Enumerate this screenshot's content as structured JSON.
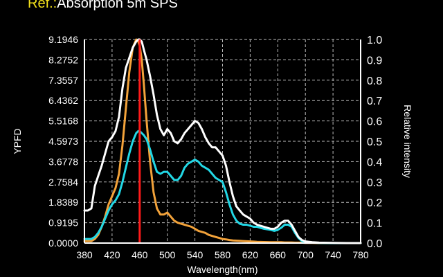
{
  "header": {
    "ref_label": "Ref.:",
    "title": "Absorption 5m SPS"
  },
  "chart_data": {
    "type": "line",
    "xlabel": "Wavelength(nm)",
    "ylabel_left": "YPFD",
    "ylabel_right": "Relative intensity",
    "xlim": [
      380,
      780
    ],
    "ylim_left": [
      0,
      9.1946
    ],
    "ylim_right": [
      0,
      1.0
    ],
    "x_ticks": [
      "380",
      "420",
      "460",
      "500",
      "540",
      "580",
      "620",
      "660",
      "700",
      "740",
      "780"
    ],
    "y_left_ticks": [
      "0.0000",
      "0.9195",
      "1.8389",
      "2.7584",
      "3.6778",
      "4.5973",
      "5.5168",
      "6.4362",
      "7.3557",
      "8.2752",
      "9.1946"
    ],
    "y_right_ticks": [
      "0.0",
      "0.1",
      "0.2",
      "0.3",
      "0.4",
      "0.5",
      "0.6",
      "0.7",
      "0.8",
      "0.9",
      "1.0"
    ],
    "grid": true,
    "marker_wavelength": 460,
    "colors": {
      "white_series": "#ffffff",
      "cyan_series": "#22d8e6",
      "orange_series": "#f2a23a",
      "marker": "#ff1a1a",
      "grid": "#bbbbbb",
      "axes": "#ffffff"
    },
    "series": [
      {
        "color": "#ffffff",
        "x": [
          380,
          385,
          390,
          395,
          400,
          405,
          410,
          415,
          420,
          425,
          430,
          435,
          440,
          445,
          450,
          455,
          458,
          460,
          463,
          466,
          470,
          475,
          480,
          485,
          490,
          495,
          500,
          505,
          510,
          515,
          520,
          525,
          530,
          535,
          540,
          545,
          550,
          555,
          560,
          565,
          570,
          575,
          580,
          585,
          590,
          595,
          600,
          605,
          610,
          615,
          620,
          625,
          630,
          640,
          650,
          655,
          660,
          665,
          670,
          675,
          680,
          685,
          690,
          695,
          700,
          710,
          720,
          740,
          760,
          780
        ],
        "values": [
          0.16,
          0.16,
          0.17,
          0.28,
          0.33,
          0.38,
          0.44,
          0.5,
          0.52,
          0.55,
          0.62,
          0.76,
          0.86,
          0.91,
          0.96,
          0.99,
          1.0,
          1.0,
          0.99,
          0.95,
          0.9,
          0.82,
          0.73,
          0.63,
          0.56,
          0.53,
          0.56,
          0.54,
          0.5,
          0.49,
          0.51,
          0.54,
          0.56,
          0.58,
          0.6,
          0.59,
          0.56,
          0.52,
          0.49,
          0.47,
          0.47,
          0.45,
          0.43,
          0.38,
          0.3,
          0.23,
          0.18,
          0.16,
          0.14,
          0.13,
          0.12,
          0.1,
          0.09,
          0.08,
          0.07,
          0.07,
          0.08,
          0.1,
          0.11,
          0.11,
          0.09,
          0.06,
          0.03,
          0.015,
          0.008,
          0.004,
          0.002,
          0.001,
          0.0,
          0.0
        ]
      },
      {
        "color": "#22d8e6",
        "x": [
          380,
          385,
          390,
          395,
          400,
          405,
          410,
          415,
          420,
          425,
          430,
          435,
          440,
          445,
          450,
          455,
          458,
          460,
          463,
          466,
          470,
          475,
          480,
          485,
          490,
          495,
          500,
          505,
          510,
          515,
          520,
          525,
          530,
          535,
          540,
          545,
          550,
          555,
          560,
          565,
          570,
          575,
          580,
          585,
          590,
          595,
          600,
          605,
          610,
          615,
          620,
          625,
          630,
          640,
          650,
          655,
          660,
          665,
          670,
          675,
          680,
          685,
          690,
          695,
          700,
          710,
          720,
          740,
          760,
          780
        ],
        "values": [
          0.02,
          0.02,
          0.02,
          0.03,
          0.05,
          0.08,
          0.12,
          0.16,
          0.19,
          0.21,
          0.24,
          0.3,
          0.37,
          0.44,
          0.5,
          0.54,
          0.55,
          0.55,
          0.54,
          0.53,
          0.51,
          0.46,
          0.4,
          0.35,
          0.34,
          0.35,
          0.35,
          0.33,
          0.31,
          0.31,
          0.33,
          0.37,
          0.39,
          0.4,
          0.41,
          0.4,
          0.38,
          0.37,
          0.36,
          0.34,
          0.32,
          0.31,
          0.3,
          0.25,
          0.19,
          0.14,
          0.11,
          0.095,
          0.09,
          0.09,
          0.085,
          0.08,
          0.08,
          0.07,
          0.065,
          0.06,
          0.065,
          0.075,
          0.09,
          0.09,
          0.08,
          0.05,
          0.025,
          0.01,
          0.005,
          0.002,
          0.001,
          0.0,
          0.0,
          0.0
        ]
      },
      {
        "color": "#f2a23a",
        "x": [
          380,
          385,
          390,
          395,
          400,
          405,
          410,
          415,
          420,
          425,
          430,
          435,
          440,
          445,
          450,
          455,
          458,
          460,
          463,
          466,
          470,
          475,
          480,
          485,
          490,
          495,
          500,
          505,
          510,
          515,
          520,
          525,
          530,
          535,
          540,
          545,
          550,
          555,
          560,
          565,
          570,
          575,
          580,
          585,
          590,
          595,
          600,
          605,
          610,
          615,
          620,
          625,
          630,
          640,
          650,
          655,
          660,
          665,
          670,
          675,
          680,
          685,
          690,
          695,
          700,
          710,
          720,
          740,
          760,
          780
        ],
        "values": [
          0.01,
          0.01,
          0.01,
          0.02,
          0.04,
          0.08,
          0.13,
          0.19,
          0.23,
          0.27,
          0.34,
          0.48,
          0.66,
          0.84,
          0.96,
          1.0,
          0.99,
          0.97,
          0.9,
          0.78,
          0.6,
          0.4,
          0.25,
          0.17,
          0.14,
          0.14,
          0.15,
          0.13,
          0.11,
          0.1,
          0.095,
          0.09,
          0.085,
          0.08,
          0.07,
          0.06,
          0.055,
          0.05,
          0.04,
          0.035,
          0.03,
          0.025,
          0.02,
          0.018,
          0.015,
          0.013,
          0.012,
          0.011,
          0.01,
          0.009,
          0.008,
          0.007,
          0.006,
          0.005,
          0.004,
          0.004,
          0.004,
          0.004,
          0.003,
          0.003,
          0.003,
          0.002,
          0.002,
          0.002,
          0.001,
          0.001,
          0.0,
          0.0,
          0.0,
          0.0
        ]
      }
    ]
  }
}
